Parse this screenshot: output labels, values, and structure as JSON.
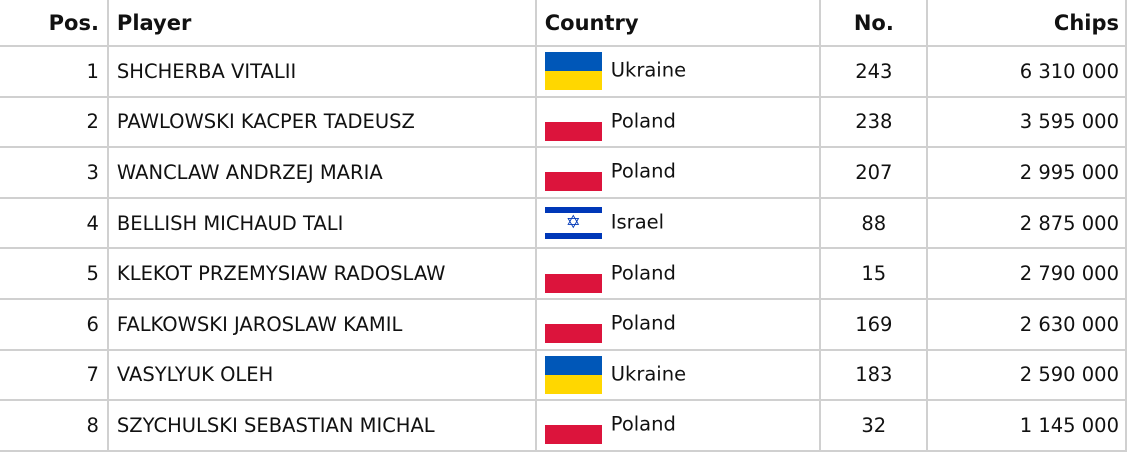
{
  "headers": {
    "pos": "Pos.",
    "player": "Player",
    "country": "Country",
    "no": "No.",
    "chips": "Chips"
  },
  "rows": [
    {
      "pos": "1",
      "player": "SHCHERBA VITALII",
      "country": "Ukraine",
      "flag": "ukraine",
      "no": "243",
      "chips": "6 310 000"
    },
    {
      "pos": "2",
      "player": "PAWLOWSKI KACPER TADEUSZ",
      "country": "Poland",
      "flag": "poland",
      "no": "238",
      "chips": "3 595 000"
    },
    {
      "pos": "3",
      "player": "WANCLAW ANDRZEJ MARIA",
      "country": "Poland",
      "flag": "poland",
      "no": "207",
      "chips": "2 995 000"
    },
    {
      "pos": "4",
      "player": "BELLISH MICHAUD TALI",
      "country": "Israel",
      "flag": "israel",
      "no": "88",
      "chips": "2 875 000"
    },
    {
      "pos": "5",
      "player": "KLEKOT PRZEMYSIAW RADOSLAW",
      "country": "Poland",
      "flag": "poland",
      "no": "15",
      "chips": "2 790 000"
    },
    {
      "pos": "6",
      "player": "FALKOWSKI JAROSLAW KAMIL",
      "country": "Poland",
      "flag": "poland",
      "no": "169",
      "chips": "2 630 000"
    },
    {
      "pos": "7",
      "player": "VASYLYUK OLEH",
      "country": "Ukraine",
      "flag": "ukraine",
      "no": "183",
      "chips": "2 590 000"
    },
    {
      "pos": "8",
      "player": "SZYCHULSKI SEBASTIAN MICHAL",
      "country": "Poland",
      "flag": "poland",
      "no": "32",
      "chips": "1 145 000"
    }
  ]
}
